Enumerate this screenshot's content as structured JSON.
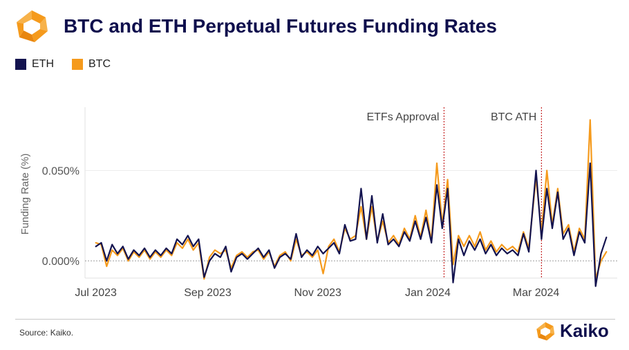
{
  "header": {
    "title": "BTC and ETH Perpetual Futures Funding Rates"
  },
  "legend": [
    {
      "label": "ETH",
      "color": "#13134f"
    },
    {
      "label": "BTC",
      "color": "#f59a1c"
    }
  ],
  "footer": {
    "source": "Source: Kaiko.",
    "brand": "Kaiko"
  },
  "colors": {
    "eth": "#13134f",
    "btc": "#f59a1c",
    "annotation": "#c62828",
    "brand_orange": "#f59a1c",
    "brand_navy": "#0f0f4d"
  },
  "icons": {
    "logo": "kaiko-logo-icon"
  },
  "chart_data": {
    "type": "line",
    "ylabel": "Funding Rate (%)",
    "xlabel": "",
    "x_range": [
      "2023-06-25",
      "2024-04-15"
    ],
    "ylim": [
      -0.0095,
      0.085
    ],
    "grid": "horizontal",
    "x_ticks": [
      {
        "date": "2023-07-01",
        "label": "Jul 2023"
      },
      {
        "date": "2023-09-01",
        "label": "Sep 2023"
      },
      {
        "date": "2023-11-01",
        "label": "Nov 2023"
      },
      {
        "date": "2024-01-01",
        "label": "Jan 2024"
      },
      {
        "date": "2024-03-01",
        "label": "Mar 2024"
      }
    ],
    "y_ticks": [
      {
        "value": 0.0,
        "label": "0.000%"
      },
      {
        "value": 0.05,
        "label": "0.050%"
      }
    ],
    "annotations": [
      {
        "date": "2024-01-10",
        "label": "ETFs Approval"
      },
      {
        "date": "2024-03-04",
        "label": "BTC ATH"
      }
    ],
    "series": [
      {
        "name": "ETH",
        "color": "#13134f",
        "points": [
          [
            "2023-07-01",
            0.008
          ],
          [
            "2023-07-04",
            0.01
          ],
          [
            "2023-07-07",
            0.0
          ],
          [
            "2023-07-10",
            0.009
          ],
          [
            "2023-07-13",
            0.004
          ],
          [
            "2023-07-16",
            0.008
          ],
          [
            "2023-07-19",
            0.001
          ],
          [
            "2023-07-22",
            0.006
          ],
          [
            "2023-07-25",
            0.003
          ],
          [
            "2023-07-28",
            0.007
          ],
          [
            "2023-07-31",
            0.002
          ],
          [
            "2023-08-03",
            0.006
          ],
          [
            "2023-08-06",
            0.003
          ],
          [
            "2023-08-09",
            0.007
          ],
          [
            "2023-08-12",
            0.004
          ],
          [
            "2023-08-15",
            0.012
          ],
          [
            "2023-08-18",
            0.009
          ],
          [
            "2023-08-21",
            0.014
          ],
          [
            "2023-08-24",
            0.008
          ],
          [
            "2023-08-27",
            0.012
          ],
          [
            "2023-08-30",
            -0.009
          ],
          [
            "2023-09-02",
            0.0
          ],
          [
            "2023-09-05",
            0.004
          ],
          [
            "2023-09-08",
            0.002
          ],
          [
            "2023-09-11",
            0.008
          ],
          [
            "2023-09-14",
            -0.006
          ],
          [
            "2023-09-17",
            0.002
          ],
          [
            "2023-09-20",
            0.004
          ],
          [
            "2023-09-23",
            0.001
          ],
          [
            "2023-09-26",
            0.004
          ],
          [
            "2023-09-29",
            0.007
          ],
          [
            "2023-10-02",
            0.002
          ],
          [
            "2023-10-05",
            0.006
          ],
          [
            "2023-10-08",
            -0.004
          ],
          [
            "2023-10-11",
            0.002
          ],
          [
            "2023-10-14",
            0.004
          ],
          [
            "2023-10-17",
            0.001
          ],
          [
            "2023-10-20",
            0.015
          ],
          [
            "2023-10-23",
            0.002
          ],
          [
            "2023-10-26",
            0.006
          ],
          [
            "2023-10-29",
            0.003
          ],
          [
            "2023-11-01",
            0.008
          ],
          [
            "2023-11-04",
            0.004
          ],
          [
            "2023-11-07",
            0.007
          ],
          [
            "2023-11-10",
            0.01
          ],
          [
            "2023-11-13",
            0.004
          ],
          [
            "2023-11-16",
            0.02
          ],
          [
            "2023-11-19",
            0.011
          ],
          [
            "2023-11-22",
            0.012
          ],
          [
            "2023-11-25",
            0.04
          ],
          [
            "2023-11-28",
            0.012
          ],
          [
            "2023-12-01",
            0.036
          ],
          [
            "2023-12-04",
            0.01
          ],
          [
            "2023-12-07",
            0.026
          ],
          [
            "2023-12-10",
            0.009
          ],
          [
            "2023-12-13",
            0.012
          ],
          [
            "2023-12-16",
            0.008
          ],
          [
            "2023-12-19",
            0.016
          ],
          [
            "2023-12-22",
            0.011
          ],
          [
            "2023-12-25",
            0.022
          ],
          [
            "2023-12-28",
            0.012
          ],
          [
            "2023-12-31",
            0.024
          ],
          [
            "2024-01-03",
            0.01
          ],
          [
            "2024-01-06",
            0.042
          ],
          [
            "2024-01-09",
            0.018
          ],
          [
            "2024-01-12",
            0.04
          ],
          [
            "2024-01-15",
            -0.012
          ],
          [
            "2024-01-18",
            0.012
          ],
          [
            "2024-01-21",
            0.003
          ],
          [
            "2024-01-24",
            0.011
          ],
          [
            "2024-01-27",
            0.006
          ],
          [
            "2024-01-30",
            0.012
          ],
          [
            "2024-02-02",
            0.004
          ],
          [
            "2024-02-05",
            0.009
          ],
          [
            "2024-02-08",
            0.003
          ],
          [
            "2024-02-11",
            0.007
          ],
          [
            "2024-02-14",
            0.004
          ],
          [
            "2024-02-17",
            0.006
          ],
          [
            "2024-02-20",
            0.003
          ],
          [
            "2024-02-23",
            0.015
          ],
          [
            "2024-02-26",
            0.005
          ],
          [
            "2024-03-01",
            0.05
          ],
          [
            "2024-03-04",
            0.012
          ],
          [
            "2024-03-07",
            0.04
          ],
          [
            "2024-03-10",
            0.018
          ],
          [
            "2024-03-13",
            0.038
          ],
          [
            "2024-03-16",
            0.012
          ],
          [
            "2024-03-19",
            0.018
          ],
          [
            "2024-03-22",
            0.003
          ],
          [
            "2024-03-25",
            0.016
          ],
          [
            "2024-03-28",
            0.01
          ],
          [
            "2024-03-31",
            0.054
          ],
          [
            "2024-04-03",
            -0.014
          ],
          [
            "2024-04-06",
            0.004
          ],
          [
            "2024-04-09",
            0.013
          ]
        ]
      },
      {
        "name": "BTC",
        "color": "#f59a1c",
        "points": [
          [
            "2023-07-01",
            0.01
          ],
          [
            "2023-07-04",
            0.009
          ],
          [
            "2023-07-07",
            -0.003
          ],
          [
            "2023-07-10",
            0.006
          ],
          [
            "2023-07-13",
            0.003
          ],
          [
            "2023-07-16",
            0.007
          ],
          [
            "2023-07-19",
            0.0
          ],
          [
            "2023-07-22",
            0.005
          ],
          [
            "2023-07-25",
            0.002
          ],
          [
            "2023-07-28",
            0.006
          ],
          [
            "2023-07-31",
            0.001
          ],
          [
            "2023-08-03",
            0.005
          ],
          [
            "2023-08-06",
            0.002
          ],
          [
            "2023-08-09",
            0.006
          ],
          [
            "2023-08-12",
            0.003
          ],
          [
            "2023-08-15",
            0.01
          ],
          [
            "2023-08-18",
            0.007
          ],
          [
            "2023-08-21",
            0.012
          ],
          [
            "2023-08-24",
            0.006
          ],
          [
            "2023-08-27",
            0.01
          ],
          [
            "2023-08-30",
            -0.01
          ],
          [
            "2023-09-02",
            0.002
          ],
          [
            "2023-09-05",
            0.006
          ],
          [
            "2023-09-08",
            0.004
          ],
          [
            "2023-09-11",
            0.006
          ],
          [
            "2023-09-14",
            -0.004
          ],
          [
            "2023-09-17",
            0.003
          ],
          [
            "2023-09-20",
            0.005
          ],
          [
            "2023-09-23",
            0.002
          ],
          [
            "2023-09-26",
            0.005
          ],
          [
            "2023-09-29",
            0.006
          ],
          [
            "2023-10-02",
            0.001
          ],
          [
            "2023-10-05",
            0.005
          ],
          [
            "2023-10-08",
            -0.003
          ],
          [
            "2023-10-11",
            0.003
          ],
          [
            "2023-10-14",
            0.005
          ],
          [
            "2023-10-17",
            0.0
          ],
          [
            "2023-10-20",
            0.012
          ],
          [
            "2023-10-23",
            0.003
          ],
          [
            "2023-10-26",
            0.005
          ],
          [
            "2023-10-29",
            0.002
          ],
          [
            "2023-11-01",
            0.006
          ],
          [
            "2023-11-04",
            -0.007
          ],
          [
            "2023-11-07",
            0.008
          ],
          [
            "2023-11-10",
            0.012
          ],
          [
            "2023-11-13",
            0.005
          ],
          [
            "2023-11-16",
            0.018
          ],
          [
            "2023-11-19",
            0.012
          ],
          [
            "2023-11-22",
            0.014
          ],
          [
            "2023-11-25",
            0.03
          ],
          [
            "2023-11-28",
            0.012
          ],
          [
            "2023-12-01",
            0.03
          ],
          [
            "2023-12-04",
            0.011
          ],
          [
            "2023-12-07",
            0.022
          ],
          [
            "2023-12-10",
            0.01
          ],
          [
            "2023-12-13",
            0.014
          ],
          [
            "2023-12-16",
            0.009
          ],
          [
            "2023-12-19",
            0.018
          ],
          [
            "2023-12-22",
            0.012
          ],
          [
            "2023-12-25",
            0.025
          ],
          [
            "2023-12-28",
            0.013
          ],
          [
            "2023-12-31",
            0.028
          ],
          [
            "2024-01-03",
            0.011
          ],
          [
            "2024-01-06",
            0.054
          ],
          [
            "2024-01-09",
            0.02
          ],
          [
            "2024-01-12",
            0.045
          ],
          [
            "2024-01-15",
            -0.002
          ],
          [
            "2024-01-18",
            0.014
          ],
          [
            "2024-01-21",
            0.008
          ],
          [
            "2024-01-24",
            0.014
          ],
          [
            "2024-01-27",
            0.008
          ],
          [
            "2024-01-30",
            0.016
          ],
          [
            "2024-02-02",
            0.006
          ],
          [
            "2024-02-05",
            0.011
          ],
          [
            "2024-02-08",
            0.005
          ],
          [
            "2024-02-11",
            0.009
          ],
          [
            "2024-02-14",
            0.006
          ],
          [
            "2024-02-17",
            0.008
          ],
          [
            "2024-02-20",
            0.005
          ],
          [
            "2024-02-23",
            0.016
          ],
          [
            "2024-02-26",
            0.007
          ],
          [
            "2024-03-01",
            0.046
          ],
          [
            "2024-03-04",
            0.016
          ],
          [
            "2024-03-07",
            0.05
          ],
          [
            "2024-03-10",
            0.02
          ],
          [
            "2024-03-13",
            0.04
          ],
          [
            "2024-03-16",
            0.015
          ],
          [
            "2024-03-19",
            0.02
          ],
          [
            "2024-03-22",
            0.005
          ],
          [
            "2024-03-25",
            0.018
          ],
          [
            "2024-03-28",
            0.012
          ],
          [
            "2024-03-31",
            0.078
          ],
          [
            "2024-04-03",
            -0.01
          ],
          [
            "2024-04-06",
            0.0
          ],
          [
            "2024-04-09",
            0.005
          ]
        ]
      }
    ]
  }
}
